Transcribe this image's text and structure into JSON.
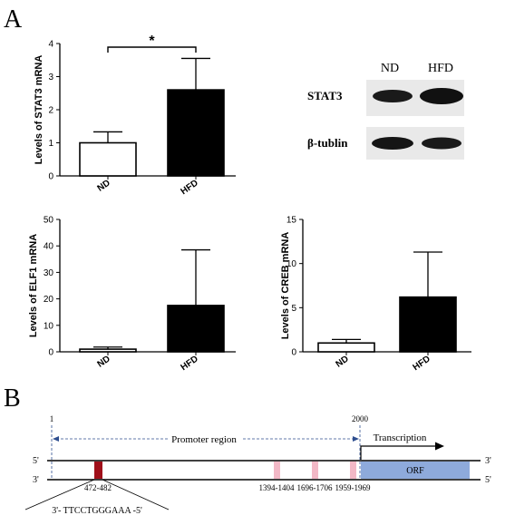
{
  "panels": {
    "a": "A",
    "b": "B"
  },
  "chart_data": [
    {
      "type": "bar",
      "categories": [
        "ND",
        "HFD"
      ],
      "values": [
        1.0,
        2.6
      ],
      "errors": [
        0.33,
        0.95
      ],
      "fills": [
        "#ffffff",
        "#000000"
      ],
      "ylabel": "Levels of STAT3 mRNA",
      "ylim": [
        0,
        4
      ],
      "yticks": [
        0,
        1,
        2,
        3,
        4
      ],
      "significance": "*"
    },
    {
      "type": "bar",
      "categories": [
        "ND",
        "HFD"
      ],
      "values": [
        1.0,
        17.5
      ],
      "errors": [
        0.8,
        21.0
      ],
      "fills": [
        "#ffffff",
        "#000000"
      ],
      "ylabel": "Levels of ELF1 mRNA",
      "ylim": [
        0,
        50
      ],
      "yticks": [
        0,
        10,
        20,
        30,
        40,
        50
      ]
    },
    {
      "type": "bar",
      "categories": [
        "ND",
        "HFD"
      ],
      "values": [
        1.0,
        6.2
      ],
      "errors": [
        0.4,
        5.1
      ],
      "fills": [
        "#ffffff",
        "#000000"
      ],
      "ylabel": "Levels of CREB mRNA",
      "ylim": [
        0,
        15
      ],
      "yticks": [
        0,
        5,
        10,
        15
      ]
    }
  ],
  "blot": {
    "columns": [
      "ND",
      "HFD"
    ],
    "rows": [
      "STAT3",
      "β-tublin"
    ]
  },
  "diagram": {
    "start_pos": "1",
    "end_pos": "2000",
    "region_label": "Promoter region",
    "transcription_label": "Transcription",
    "strand_top_left": "5'",
    "strand_top_right": "3'",
    "strand_bottom_left": "3'",
    "strand_bottom_right": "5'",
    "orf_label": "ORF",
    "sites": [
      "472-482",
      "1394-1404",
      "1696-1706",
      "1959-1969"
    ],
    "sequence": "3'- TTCCTGGGAAA -5'",
    "colors": {
      "orf": "#8eaadb",
      "main_site": "#a0101a",
      "minor_site": "#f2b8c6"
    }
  }
}
